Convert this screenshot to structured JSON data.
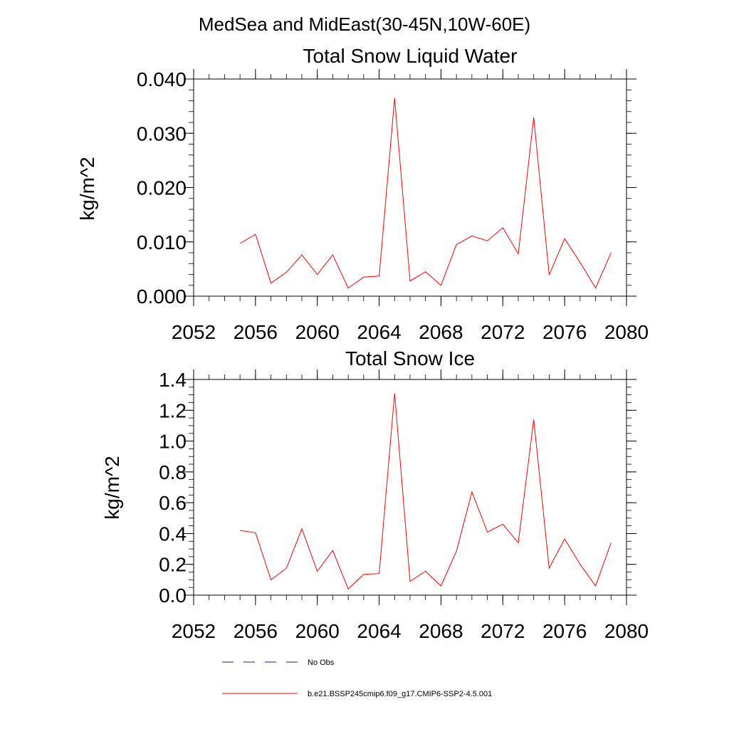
{
  "figure_title": "MedSea and MidEast(30-45N,10W-60E)",
  "chart_data": [
    {
      "type": "line",
      "title": "Total Snow Liquid Water",
      "xlabel": "",
      "ylabel": "kg/m^2",
      "xlim": [
        2052,
        2080
      ],
      "ylim": [
        0,
        0.04
      ],
      "xticks": [
        2052,
        2056,
        2060,
        2064,
        2068,
        2072,
        2076,
        2080
      ],
      "xtick_labels": [
        "2052",
        "2056",
        "2060",
        "2064",
        "2068",
        "2072",
        "2076",
        "2080"
      ],
      "yticks": [
        0,
        0.01,
        0.02,
        0.03,
        0.04
      ],
      "ytick_labels": [
        "0.000",
        "0.010",
        "0.020",
        "0.030",
        "0.040"
      ],
      "x_minor_step": 1,
      "y_minor_step": 0.002,
      "grid": false,
      "series": [
        {
          "name": "b.e21.BSSP245cmip6.f09_g17.CMIP6-SSP2-4.5.001",
          "color": "#ff0000",
          "x": [
            2055,
            2056,
            2057,
            2058,
            2059,
            2060,
            2061,
            2062,
            2063,
            2064,
            2065,
            2066,
            2067,
            2068,
            2069,
            2070,
            2071,
            2072,
            2073,
            2074,
            2075,
            2076,
            2077,
            2078,
            2079
          ],
          "y": [
            0.0097,
            0.0114,
            0.0024,
            0.0044,
            0.0076,
            0.004,
            0.0076,
            0.0015,
            0.0035,
            0.0037,
            0.0365,
            0.0028,
            0.0045,
            0.002,
            0.0095,
            0.0111,
            0.0102,
            0.0126,
            0.0078,
            0.0329,
            0.0039,
            0.0106,
            0.0062,
            0.0015,
            0.008
          ]
        }
      ]
    },
    {
      "type": "line",
      "title": "Total Snow Ice",
      "xlabel": "",
      "ylabel": "kg/m^2",
      "xlim": [
        2052,
        2080
      ],
      "ylim": [
        0,
        1.4
      ],
      "xticks": [
        2052,
        2056,
        2060,
        2064,
        2068,
        2072,
        2076,
        2080
      ],
      "xtick_labels": [
        "2052",
        "2056",
        "2060",
        "2064",
        "2068",
        "2072",
        "2076",
        "2080"
      ],
      "yticks": [
        0,
        0.2,
        0.4,
        0.6,
        0.8,
        1.0,
        1.2,
        1.4
      ],
      "ytick_labels": [
        "0.0",
        "0.2",
        "0.4",
        "0.6",
        "0.8",
        "1.0",
        "1.2",
        "1.4"
      ],
      "x_minor_step": 1,
      "y_minor_step": 0.05,
      "grid": false,
      "series": [
        {
          "name": "b.e21.BSSP245cmip6.f09_g17.CMIP6-SSP2-4.5.001",
          "color": "#ff0000",
          "x": [
            2055,
            2056,
            2057,
            2058,
            2059,
            2060,
            2061,
            2062,
            2063,
            2064,
            2065,
            2066,
            2067,
            2068,
            2069,
            2070,
            2071,
            2072,
            2073,
            2074,
            2075,
            2076,
            2077,
            2078,
            2079
          ],
          "y": [
            0.42,
            0.405,
            0.1,
            0.175,
            0.43,
            0.155,
            0.29,
            0.04,
            0.135,
            0.14,
            1.31,
            0.09,
            0.155,
            0.06,
            0.285,
            0.67,
            0.41,
            0.46,
            0.34,
            1.14,
            0.175,
            0.365,
            0.2,
            0.06,
            0.34
          ]
        }
      ]
    }
  ],
  "legend": {
    "placement": "bottom",
    "items": [
      {
        "label": "No Obs",
        "color": "#1a1a80",
        "dash": "dashed"
      },
      {
        "label": "b.e21.BSSP245cmip6.f09_g17.CMIP6-SSP2-4.5.001",
        "color": "#ff0000",
        "dash": "solid"
      }
    ]
  }
}
